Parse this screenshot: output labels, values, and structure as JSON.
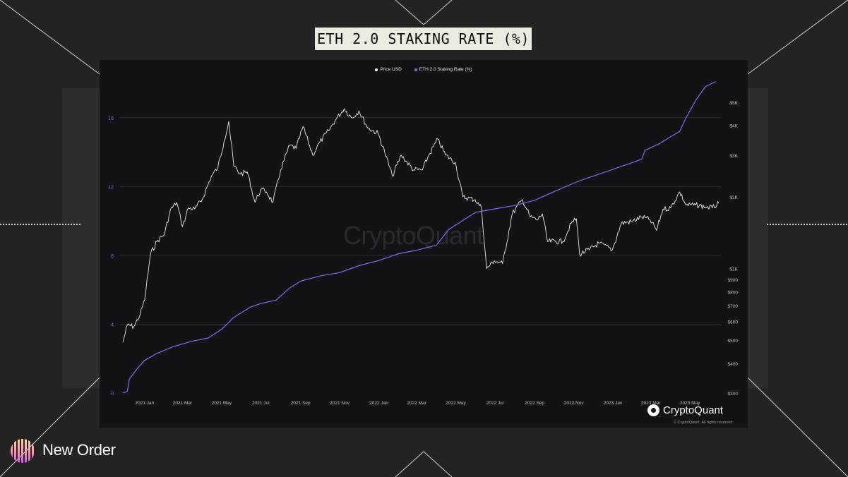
{
  "page_title": "ETH 2.0 STAKING RATE (%)",
  "legend": [
    {
      "label": "Price USD",
      "color": "#ffffff"
    },
    {
      "label": "ETH 2.0 Staking Rate (%)",
      "color": "#7b6cf6"
    }
  ],
  "watermark": "CryptoQuant",
  "brand": "CryptoQuant",
  "copyright": "© CryptoQuant. All rights reserved.",
  "footer_brand": "New Order",
  "colors": {
    "price_line": "#e8e8e8",
    "staking_line": "#7b6cf6",
    "left_axis_text": "#7b6cf6",
    "right_axis_text": "#bbbbbb"
  },
  "chart_data": {
    "type": "line",
    "title": "ETH 2.0 STAKING RATE (%)",
    "x_range": [
      "2020-11-28",
      "2023-06-15"
    ],
    "x_ticks": [
      {
        "label": "2021 Jan",
        "date": "2021-01-01"
      },
      {
        "label": "2021 Mar",
        "date": "2021-03-01"
      },
      {
        "label": "2021 May",
        "date": "2021-05-01"
      },
      {
        "label": "2021 Jul",
        "date": "2021-07-01"
      },
      {
        "label": "2021 Sep",
        "date": "2021-09-01"
      },
      {
        "label": "2021 Nov",
        "date": "2021-11-01"
      },
      {
        "label": "2022 Jan",
        "date": "2022-01-01"
      },
      {
        "label": "2022 Mar",
        "date": "2022-03-01"
      },
      {
        "label": "2022 May",
        "date": "2022-05-01"
      },
      {
        "label": "2022 Jul",
        "date": "2022-07-01"
      },
      {
        "label": "2022 Sep",
        "date": "2022-09-01"
      },
      {
        "label": "2022 Nov",
        "date": "2022-11-01"
      },
      {
        "label": "2023 Jan",
        "date": "2023-01-01"
      },
      {
        "label": "2023 Mar",
        "date": "2023-03-01"
      },
      {
        "label": "2023 May",
        "date": "2023-05-01"
      }
    ],
    "left_axis": {
      "scale": "linear",
      "ylim": [
        0,
        18
      ],
      "ticks": [
        0,
        4,
        8,
        12,
        16
      ]
    },
    "right_axis": {
      "scale": "log",
      "ylim": [
        300,
        5000
      ],
      "ticks": [
        {
          "label": "$300",
          "value": 300
        },
        {
          "label": "$400",
          "value": 400
        },
        {
          "label": "$500",
          "value": 500
        },
        {
          "label": "$600",
          "value": 600
        },
        {
          "label": "$700",
          "value": 700
        },
        {
          "label": "$800",
          "value": 800
        },
        {
          "label": "$900",
          "value": 900
        },
        {
          "label": "$1K",
          "value": 1000
        },
        {
          "label": "$2K",
          "value": 2000
        },
        {
          "label": "$3K",
          "value": 3000
        },
        {
          "label": "$4K",
          "value": 4000
        },
        {
          "label": "$5K",
          "value": 5000
        }
      ]
    },
    "grid": true,
    "series": [
      {
        "name": "Price USD",
        "axis": "right",
        "points": [
          [
            "2020-11-28",
            490
          ],
          [
            "2020-12-05",
            580
          ],
          [
            "2020-12-15",
            570
          ],
          [
            "2020-12-25",
            640
          ],
          [
            "2021-01-01",
            740
          ],
          [
            "2021-01-10",
            1150
          ],
          [
            "2021-01-20",
            1300
          ],
          [
            "2021-02-01",
            1400
          ],
          [
            "2021-02-10",
            1760
          ],
          [
            "2021-02-20",
            1900
          ],
          [
            "2021-03-01",
            1500
          ],
          [
            "2021-03-10",
            1800
          ],
          [
            "2021-03-20",
            1780
          ],
          [
            "2021-04-01",
            1960
          ],
          [
            "2021-04-15",
            2450
          ],
          [
            "2021-04-25",
            2650
          ],
          [
            "2021-05-05",
            3450
          ],
          [
            "2021-05-12",
            4150
          ],
          [
            "2021-05-20",
            2700
          ],
          [
            "2021-05-30",
            2500
          ],
          [
            "2021-06-10",
            2550
          ],
          [
            "2021-06-22",
            1900
          ],
          [
            "2021-07-01",
            2150
          ],
          [
            "2021-07-10",
            2100
          ],
          [
            "2021-07-20",
            1900
          ],
          [
            "2021-08-01",
            2600
          ],
          [
            "2021-08-15",
            3300
          ],
          [
            "2021-08-25",
            3200
          ],
          [
            "2021-09-05",
            3950
          ],
          [
            "2021-09-20",
            3000
          ],
          [
            "2021-10-01",
            3400
          ],
          [
            "2021-10-15",
            3800
          ],
          [
            "2021-10-25",
            4200
          ],
          [
            "2021-11-08",
            4700
          ],
          [
            "2021-11-20",
            4300
          ],
          [
            "2021-12-01",
            4600
          ],
          [
            "2021-12-15",
            3900
          ],
          [
            "2021-12-31",
            3700
          ],
          [
            "2022-01-10",
            3100
          ],
          [
            "2022-01-22",
            2450
          ],
          [
            "2022-02-05",
            3000
          ],
          [
            "2022-02-24",
            2600
          ],
          [
            "2022-03-10",
            2600
          ],
          [
            "2022-03-20",
            3000
          ],
          [
            "2022-04-03",
            3500
          ],
          [
            "2022-04-15",
            3000
          ],
          [
            "2022-04-30",
            2800
          ],
          [
            "2022-05-12",
            2000
          ],
          [
            "2022-05-31",
            1950
          ],
          [
            "2022-06-10",
            1800
          ],
          [
            "2022-06-18",
            1000
          ],
          [
            "2022-06-30",
            1080
          ],
          [
            "2022-07-13",
            1050
          ],
          [
            "2022-07-28",
            1700
          ],
          [
            "2022-08-13",
            1950
          ],
          [
            "2022-08-25",
            1650
          ],
          [
            "2022-09-05",
            1600
          ],
          [
            "2022-09-13",
            1700
          ],
          [
            "2022-09-21",
            1300
          ],
          [
            "2022-10-15",
            1300
          ],
          [
            "2022-10-28",
            1550
          ],
          [
            "2022-11-05",
            1620
          ],
          [
            "2022-11-10",
            1150
          ],
          [
            "2022-11-25",
            1200
          ],
          [
            "2022-12-10",
            1280
          ],
          [
            "2022-12-31",
            1200
          ],
          [
            "2023-01-14",
            1550
          ],
          [
            "2023-01-31",
            1580
          ],
          [
            "2023-02-15",
            1650
          ],
          [
            "2023-02-28",
            1600
          ],
          [
            "2023-03-10",
            1450
          ],
          [
            "2023-03-20",
            1780
          ],
          [
            "2023-04-01",
            1800
          ],
          [
            "2023-04-15",
            2100
          ],
          [
            "2023-04-25",
            1850
          ],
          [
            "2023-05-10",
            1850
          ],
          [
            "2023-05-25",
            1820
          ],
          [
            "2023-06-05",
            1800
          ],
          [
            "2023-06-15",
            1880
          ]
        ]
      },
      {
        "name": "ETH 2.0 Staking Rate (%)",
        "axis": "left",
        "points": [
          [
            "2020-11-28",
            0
          ],
          [
            "2020-12-05",
            0.1
          ],
          [
            "2020-12-08",
            0.8
          ],
          [
            "2020-12-20",
            1.4
          ],
          [
            "2021-01-01",
            1.9
          ],
          [
            "2021-01-20",
            2.3
          ],
          [
            "2021-02-15",
            2.7
          ],
          [
            "2021-03-15",
            3.0
          ],
          [
            "2021-04-10",
            3.2
          ],
          [
            "2021-05-01",
            3.7
          ],
          [
            "2021-05-20",
            4.4
          ],
          [
            "2021-06-15",
            5.0
          ],
          [
            "2021-07-01",
            5.2
          ],
          [
            "2021-07-25",
            5.4
          ],
          [
            "2021-08-15",
            6.1
          ],
          [
            "2021-09-01",
            6.5
          ],
          [
            "2021-10-01",
            6.8
          ],
          [
            "2021-11-01",
            7.0
          ],
          [
            "2021-12-01",
            7.4
          ],
          [
            "2022-01-01",
            7.7
          ],
          [
            "2022-02-01",
            8.1
          ],
          [
            "2022-03-01",
            8.3
          ],
          [
            "2022-04-01",
            8.6
          ],
          [
            "2022-04-20",
            9.5
          ],
          [
            "2022-05-15",
            10.1
          ],
          [
            "2022-06-01",
            10.5
          ],
          [
            "2022-07-01",
            10.7
          ],
          [
            "2022-08-01",
            10.9
          ],
          [
            "2022-09-01",
            11.2
          ],
          [
            "2022-10-01",
            11.7
          ],
          [
            "2022-11-01",
            12.2
          ],
          [
            "2022-11-15",
            12.4
          ],
          [
            "2022-12-01",
            12.6
          ],
          [
            "2023-01-01",
            13.0
          ],
          [
            "2023-02-01",
            13.4
          ],
          [
            "2023-02-15",
            13.6
          ],
          [
            "2023-02-20",
            14.1
          ],
          [
            "2023-03-15",
            14.5
          ],
          [
            "2023-04-01",
            14.9
          ],
          [
            "2023-04-15",
            15.2
          ],
          [
            "2023-04-25",
            16.0
          ],
          [
            "2023-05-10",
            17.0
          ],
          [
            "2023-05-25",
            17.8
          ],
          [
            "2023-06-10",
            18.1
          ]
        ]
      }
    ]
  }
}
